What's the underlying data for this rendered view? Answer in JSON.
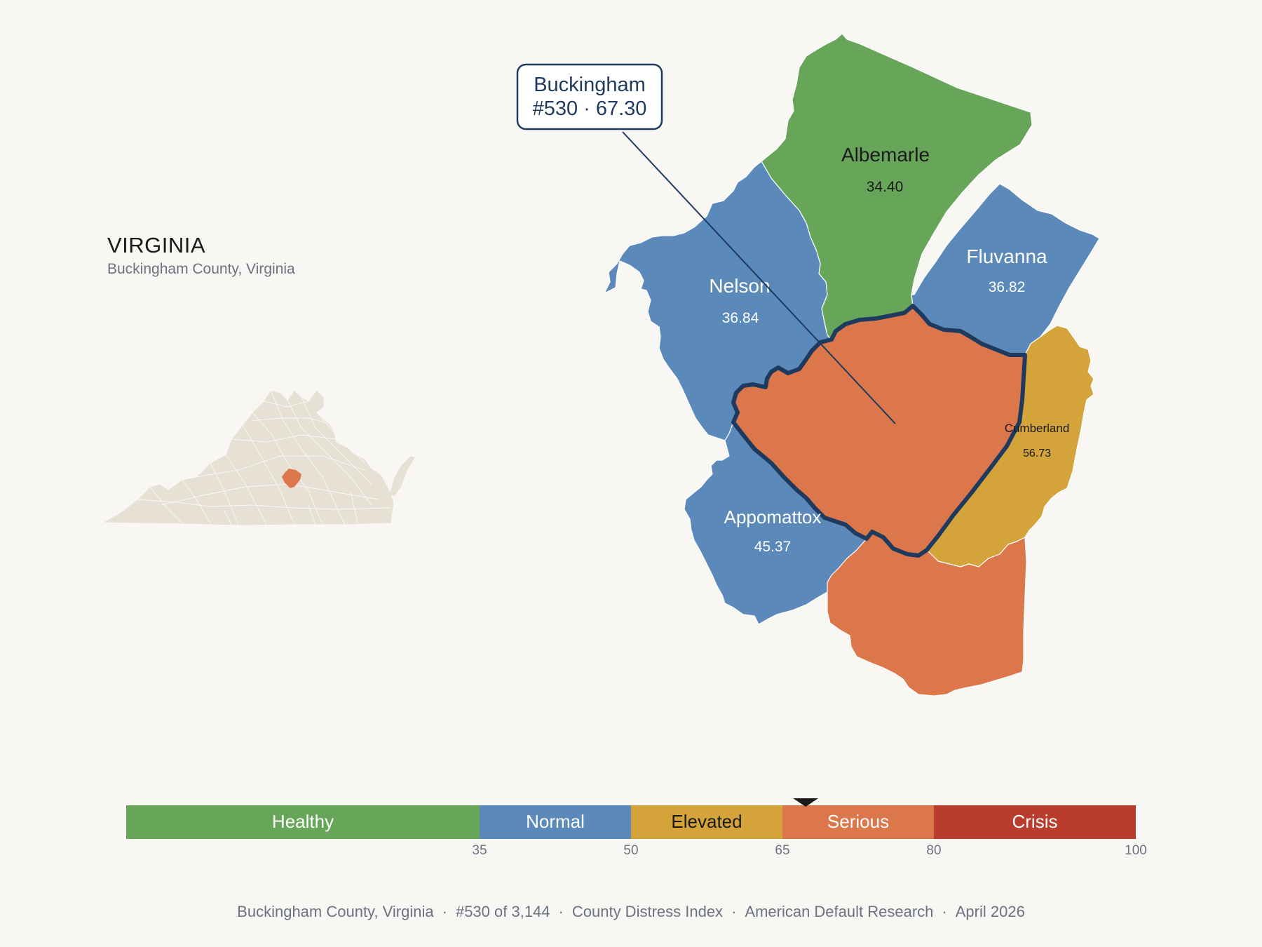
{
  "state": {
    "title": "VIRGINIA",
    "subtitle": "Buckingham County, Virginia"
  },
  "callout": {
    "county": "Buckingham",
    "detail": "#530 · 67.30"
  },
  "counties": [
    {
      "name": "Albemarle",
      "score": "34.40",
      "category": "Healthy"
    },
    {
      "name": "Fluvanna",
      "score": "36.82",
      "category": "Normal"
    },
    {
      "name": "Nelson",
      "score": "36.84",
      "category": "Normal"
    },
    {
      "name": "Cumberland",
      "score": "56.73",
      "category": "Elevated"
    },
    {
      "name": "Appomattox",
      "score": "45.37",
      "category": "Normal"
    },
    {
      "name": "Buckingham",
      "score": "67.30",
      "category": "Serious",
      "highlighted": true
    },
    {
      "name": "",
      "score": "",
      "category": "Serious"
    }
  ],
  "scale": {
    "min": 0,
    "max": 100,
    "marker_value": 67.3,
    "segments": [
      {
        "label": "Healthy",
        "from": 0,
        "to": 35,
        "color": "#67a659",
        "text_color": "#ffffff"
      },
      {
        "label": "Normal",
        "from": 35,
        "to": 50,
        "color": "#5b8aba",
        "text_color": "#ffffff"
      },
      {
        "label": "Elevated",
        "from": 50,
        "to": 65,
        "color": "#d4a43a",
        "text_color": "#1a1a1a"
      },
      {
        "label": "Serious",
        "from": 65,
        "to": 80,
        "color": "#dc774b",
        "text_color": "#ffffff"
      },
      {
        "label": "Crisis",
        "from": 80,
        "to": 100,
        "color": "#b93c2c",
        "text_color": "#ffffff"
      }
    ],
    "ticks": [
      "35",
      "50",
      "65",
      "80",
      "100"
    ]
  },
  "footer": {
    "county": "Buckingham County, Virginia",
    "rank": "#530 of 3,144",
    "index": "County Distress Index",
    "source": "American Default Research",
    "date": "April 2026"
  },
  "colors": {
    "background": "#f9f7f4",
    "highlight_outline": "#1f3a5f",
    "state_fill": "#e6e0d5"
  }
}
